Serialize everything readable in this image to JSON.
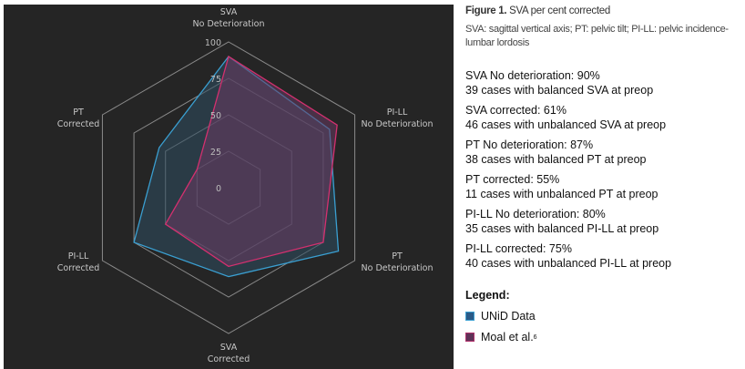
{
  "figure": {
    "label": "Figure 1.",
    "title": "SVA per cent corrected",
    "caption": "SVA: sagittal vertical axis; PT: pelvic tilt; PI-LL: pelvic incidence-lumbar lordosis"
  },
  "stats": [
    {
      "line1": "SVA No deterioration: 90%",
      "line2": "39 cases with balanced SVA at preop"
    },
    {
      "line1": "SVA corrected: 61%",
      "line2": "46 cases with unbalanced SVA at preop"
    },
    {
      "line1": "PT No deterioration: 87%",
      "line2": "38 cases with balanced PT at preop"
    },
    {
      "line1": "PT corrected: 55%",
      "line2": "11 cases with unbalanced PT at preop"
    },
    {
      "line1": "PI-LL No deterioration: 80%",
      "line2": "35 cases with balanced PI-LL at preop"
    },
    {
      "line1": "PI-LL corrected: 75%",
      "line2": "40 cases with unbalanced PI-LL at preop"
    }
  ],
  "legend": {
    "title": "Legend:",
    "items": [
      {
        "label": "UNiD Data",
        "sup": "",
        "fill": "#2b5a87",
        "border": "#3a9fd1"
      },
      {
        "label": "Moal et al.",
        "sup": "6",
        "fill": "#5e3358",
        "border": "#b0306a"
      }
    ]
  },
  "chart_data": {
    "type": "radar",
    "axes": [
      [
        "SVA",
        "No Deterioration"
      ],
      [
        "PI-LL",
        "No Deterioration"
      ],
      [
        "PT",
        "No Deterioration"
      ],
      [
        "SVA",
        "Corrected"
      ],
      [
        "PI-LL",
        "Corrected"
      ],
      [
        "PT",
        "Corrected"
      ]
    ],
    "rlim": [
      0,
      100
    ],
    "ticks": [
      0,
      25,
      50,
      75,
      100
    ],
    "grid": true,
    "background": "#252525",
    "grid_color": "#8a8a8a",
    "series": [
      {
        "name": "UNiD Data",
        "values": [
          90,
          80,
          87,
          61,
          75,
          55
        ],
        "stroke": "#3a9fd1",
        "fill": "#2f4f63",
        "fill_opacity": 0.55
      },
      {
        "name": "Moal et al.",
        "values": [
          90,
          86,
          75,
          54,
          50,
          25
        ],
        "stroke": "#d4306f",
        "fill": "#6a3a62",
        "fill_opacity": 0.55
      }
    ]
  }
}
